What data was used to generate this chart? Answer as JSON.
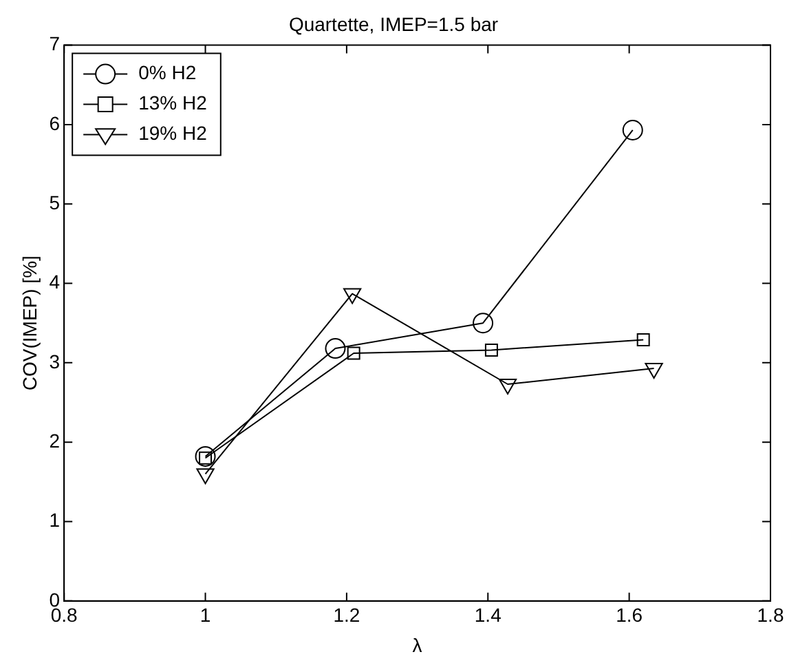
{
  "chart_data": {
    "type": "line",
    "title": "Quartette, IMEP=1.5 bar",
    "xlabel": "λ",
    "ylabel": "COV(IMEP) [%]",
    "xlim": [
      0.8,
      1.8
    ],
    "xticks": [
      0.8,
      1,
      1.2,
      1.4,
      1.6,
      1.8
    ],
    "ylim": [
      0,
      7
    ],
    "yticks": [
      0,
      1,
      2,
      3,
      4,
      5,
      6,
      7
    ],
    "grid": false,
    "legend": "top left",
    "line_style": "solid",
    "series": [
      {
        "name": "0% H2",
        "color": "#000000",
        "marker": "circle",
        "x": [
          1.0,
          1.184,
          1.393,
          1.605
        ],
        "values": [
          1.82,
          3.18,
          3.5,
          5.93
        ]
      },
      {
        "name": "13% H2",
        "color": "#000000",
        "marker": "square",
        "x": [
          1.0,
          1.21,
          1.405,
          1.62
        ],
        "values": [
          1.8,
          3.12,
          3.16,
          3.29
        ]
      },
      {
        "name": "19% H2",
        "color": "#000000",
        "marker": "triangle",
        "x": [
          1.0,
          1.208,
          1.428,
          1.635
        ],
        "values": [
          1.6,
          3.87,
          2.73,
          2.93
        ]
      }
    ]
  }
}
